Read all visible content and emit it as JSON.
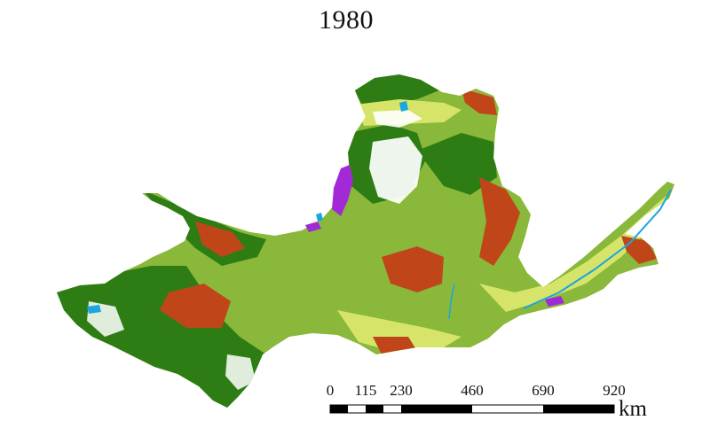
{
  "map": {
    "title": "1980",
    "colors": {
      "forest": "#2e7d14",
      "grassland": "#8ab83a",
      "light_grass": "#d6e56a",
      "cropland": "#c0461a",
      "bare": "#ffffff",
      "wetland": "#a22ad6",
      "water": "#1aa6e0"
    }
  },
  "scale_bar": {
    "ticks": [
      "0",
      "115",
      "230",
      "460",
      "690",
      "920"
    ],
    "unit": "km"
  }
}
